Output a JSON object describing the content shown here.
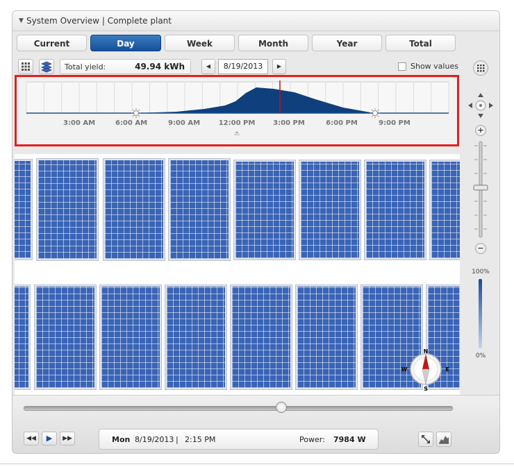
{
  "window": {
    "title": "System Overview | Complete plant"
  },
  "tabs": [
    {
      "label": "Current",
      "active": false
    },
    {
      "label": "Day",
      "active": true
    },
    {
      "label": "Week",
      "active": false
    },
    {
      "label": "Month",
      "active": false
    },
    {
      "label": "Year",
      "active": false
    },
    {
      "label": "Total",
      "active": false
    }
  ],
  "toolbar": {
    "total_yield_label": "Total yield:",
    "total_yield_value": "49.94 kWh",
    "date": "8/19/2013",
    "show_values_label": "Show values",
    "show_values_checked": false
  },
  "timeline": {
    "tick_labels": [
      "3:00 AM",
      "6:00 AM",
      "9:00 AM",
      "12:00 PM",
      "3:00 PM",
      "6:00 PM",
      "9:00 PM"
    ],
    "current_time": "2:15 PM",
    "sunrise_icon": "sun-icon",
    "sunset_icon": "sun-icon"
  },
  "sidebar": {
    "zoom_max": "100%",
    "zoom_min": "0%",
    "zoom_level": 0.52
  },
  "compass": {
    "n": "N",
    "e": "E",
    "s": "S",
    "w": "W"
  },
  "playback": {
    "progress": 0.6
  },
  "status": {
    "day": "Mon",
    "date": "8/19/2013",
    "separator": "|",
    "time": "2:15 PM",
    "power_label": "Power:",
    "power_value": "7984 W"
  },
  "colors": {
    "accent": "#155099",
    "panel": "#3a64b5",
    "highlight": "#e51e1e",
    "chart_fill": "#0f3f7c"
  }
}
